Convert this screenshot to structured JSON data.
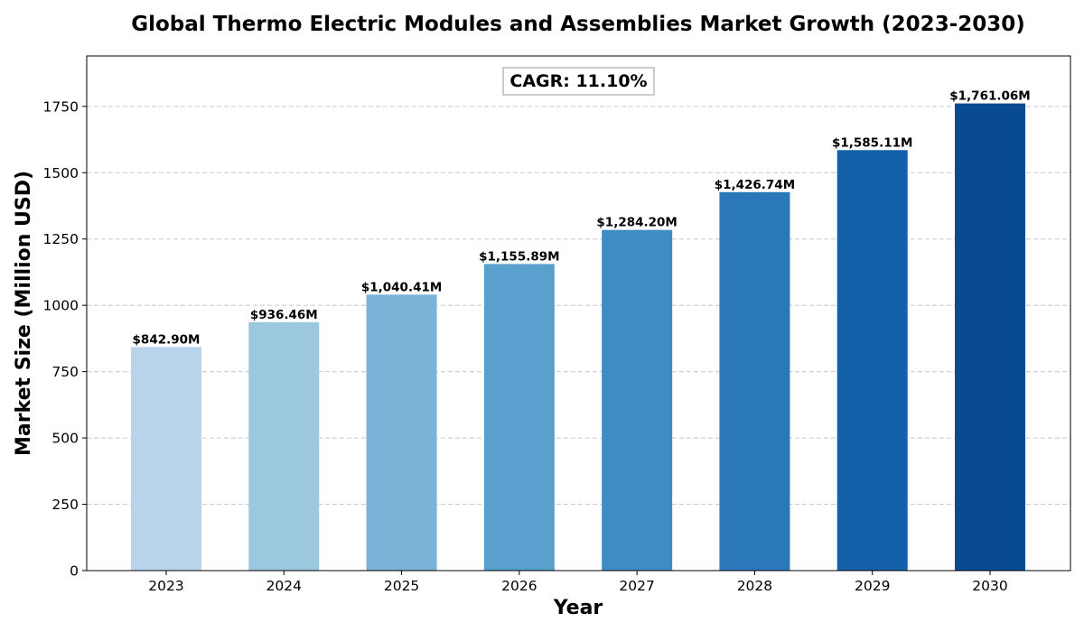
{
  "chart_data": {
    "type": "bar",
    "title": "Global Thermo Electric Modules and Assemblies Market Growth (2023-2030)",
    "xlabel": "Year",
    "ylabel": "Market Size (Million USD)",
    "categories": [
      "2023",
      "2024",
      "2025",
      "2026",
      "2027",
      "2028",
      "2029",
      "2030"
    ],
    "values": [
      842.9,
      936.46,
      1040.41,
      1155.89,
      1284.2,
      1426.74,
      1585.11,
      1761.06
    ],
    "data_labels": [
      "$842.90M",
      "$936.46M",
      "$1,040.41M",
      "$1,155.89M",
      "$1,284.20M",
      "$1,426.74M",
      "$1,585.11M",
      "$1,761.06M"
    ],
    "bar_colors": [
      "#b9d4ea",
      "#9bc7df",
      "#79b4d8",
      "#59a0ce",
      "#3f8cc3",
      "#2a78b9",
      "#1461aa",
      "#084b92"
    ],
    "ylim": [
      0,
      1940
    ],
    "yticks": [
      0,
      250,
      500,
      750,
      1000,
      1250,
      1500,
      1750
    ],
    "ytick_labels": [
      "0",
      "250",
      "500",
      "750",
      "1000",
      "1250",
      "1500",
      "1750"
    ],
    "grid": true,
    "annotation": "CAGR: 11.10%"
  }
}
